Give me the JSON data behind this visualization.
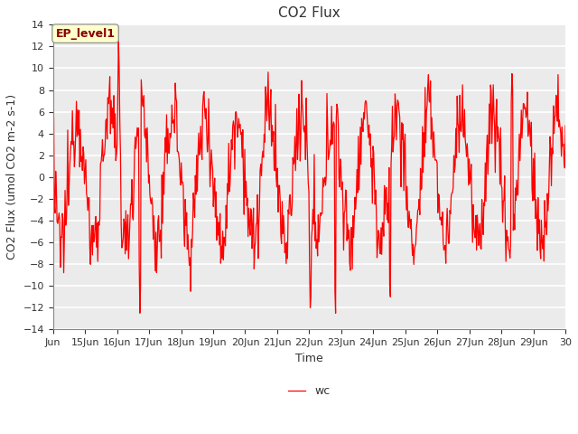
{
  "title": "CO2 Flux",
  "xlabel": "Time",
  "ylabel": "CO2 Flux (umol CO2 m-2 s-1)",
  "ylim": [
    -14,
    14
  ],
  "yticks": [
    -14,
    -12,
    -10,
    -8,
    -6,
    -4,
    -2,
    0,
    2,
    4,
    6,
    8,
    10,
    12,
    14
  ],
  "xtick_labels": [
    "Jun",
    "15Jun",
    "16Jun",
    "17Jun",
    "18Jun",
    "19Jun",
    "20Jun",
    "21Jun",
    "22Jun",
    "23Jun",
    "24Jun",
    "25Jun",
    "26Jun",
    "27Jun",
    "28Jun",
    "29Jun",
    "30"
  ],
  "line_color": "#FF0000",
  "line_label": "wc",
  "annotation_text": "EP_level1",
  "annotation_box_facecolor": "#FFFFCC",
  "annotation_text_color": "#880000",
  "bg_color": "#EBEBEB",
  "grid_color": "#FFFFFF",
  "title_fontsize": 11,
  "label_fontsize": 9,
  "tick_fontsize": 8,
  "n_days": 16,
  "points_per_day": 48,
  "figwidth": 6.4,
  "figheight": 4.8,
  "dpi": 100
}
